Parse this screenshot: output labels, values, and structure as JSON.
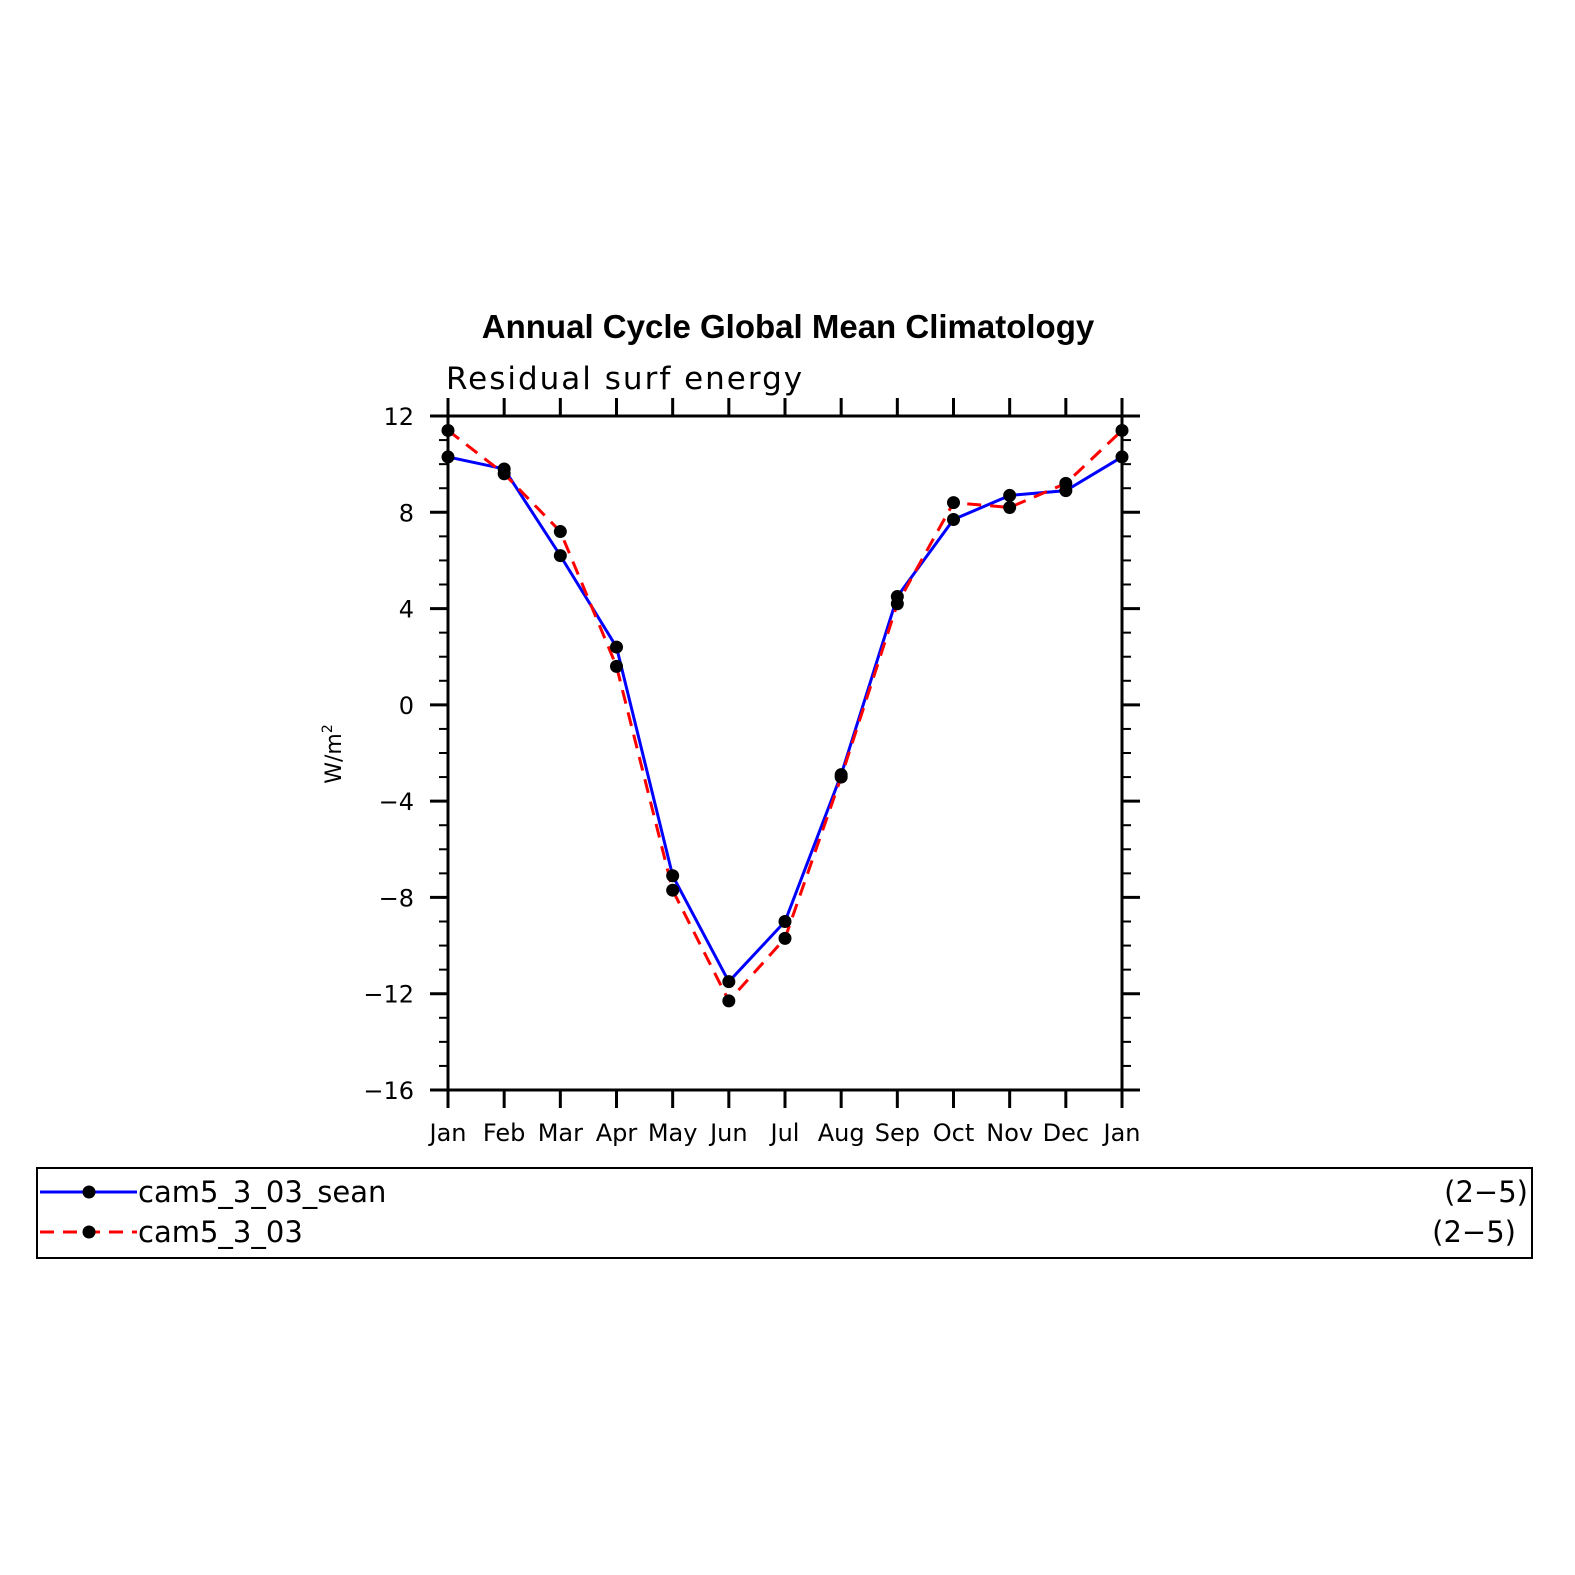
{
  "chart_data": {
    "type": "line",
    "title": "Annual Cycle Global Mean Climatology",
    "subtitle": "Residual surf energy",
    "ylabel": "W/m",
    "ylabel_sup": "2",
    "x": [
      "Jan",
      "Feb",
      "Mar",
      "Apr",
      "May",
      "Jun",
      "Jul",
      "Aug",
      "Sep",
      "Oct",
      "Nov",
      "Dec",
      "Jan"
    ],
    "ylim": [
      -16,
      12
    ],
    "yticks": [
      -16,
      -12,
      -8,
      -4,
      0,
      4,
      8,
      12
    ],
    "ytick_labels": [
      "−16",
      "−12",
      "−8",
      "−4",
      "0",
      "4",
      "8",
      "12"
    ],
    "grid": false,
    "series": [
      {
        "name": "cam5_3_03_sean",
        "range": "(2−5)",
        "color": "#0000ff",
        "dash": "solid",
        "values": [
          10.3,
          9.8,
          6.2,
          2.4,
          -7.1,
          -11.5,
          -9.0,
          -2.9,
          4.5,
          7.7,
          8.7,
          8.9,
          10.3
        ]
      },
      {
        "name": "cam5_3_03",
        "range": "(2−5)",
        "color": "#ff0000",
        "dash": "dashed",
        "values": [
          11.4,
          9.6,
          7.2,
          1.6,
          -7.7,
          -12.3,
          -9.7,
          -3.0,
          4.2,
          8.4,
          8.2,
          9.2,
          11.4
        ]
      }
    ],
    "marker_color": "#000000",
    "legend_position": "bottom"
  }
}
